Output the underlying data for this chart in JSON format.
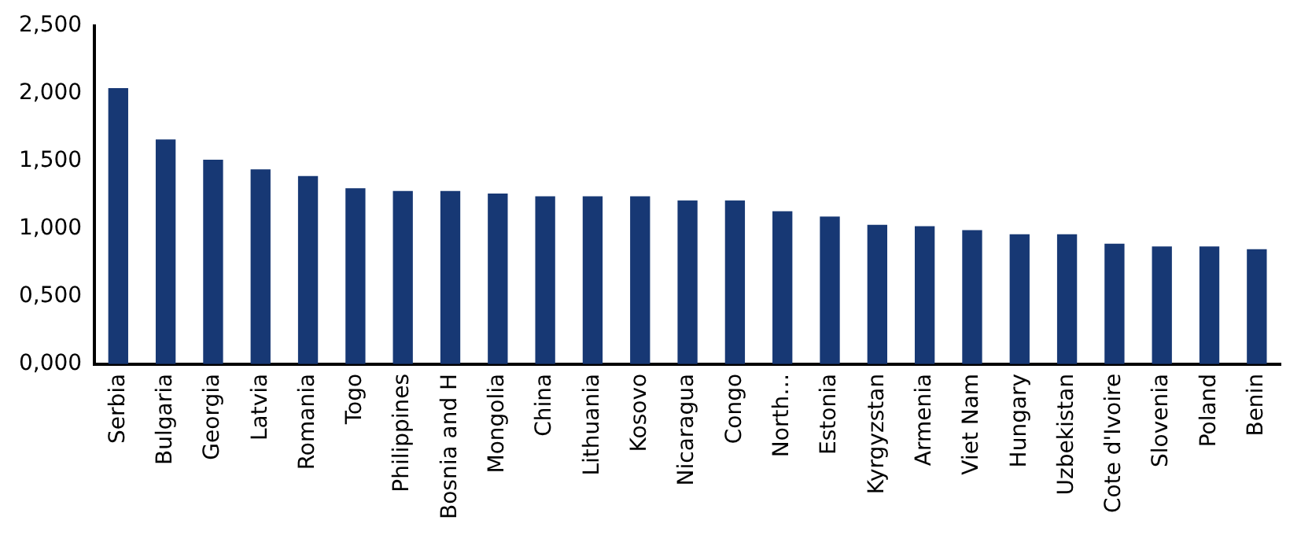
{
  "chart_data": {
    "type": "bar",
    "categories": [
      "Serbia",
      "Bulgaria",
      "Georgia",
      "Latvia",
      "Romania",
      "Togo",
      "Philippines",
      "Bosnia and H",
      "Mongolia",
      "China",
      "Lithuania",
      "Kosovo",
      "Nicaragua",
      "Congo",
      "North…",
      "Estonia",
      "Kyrgyzstan",
      "Armenia",
      "Viet Nam",
      "Hungary",
      "Uzbekistan",
      "Cote d'Ivoire",
      "Slovenia",
      "Poland",
      "Benin"
    ],
    "values": [
      2.04,
      1.66,
      1.51,
      1.44,
      1.39,
      1.3,
      1.28,
      1.28,
      1.26,
      1.24,
      1.24,
      1.24,
      1.21,
      1.21,
      1.13,
      1.09,
      1.03,
      1.02,
      0.99,
      0.96,
      0.96,
      0.89,
      0.87,
      0.87,
      0.85
    ],
    "color": "#173874",
    "ylim": [
      0,
      2.5
    ],
    "yticks": [
      {
        "value": 0,
        "label": "0,000"
      },
      {
        "value": 0.5,
        "label": "0,500"
      },
      {
        "value": 1,
        "label": "1,000"
      },
      {
        "value": 1.5,
        "label": "1,500"
      },
      {
        "value": 2,
        "label": "2,000"
      },
      {
        "value": 2.5,
        "label": "2,500"
      }
    ],
    "grid": false,
    "legend": false
  }
}
